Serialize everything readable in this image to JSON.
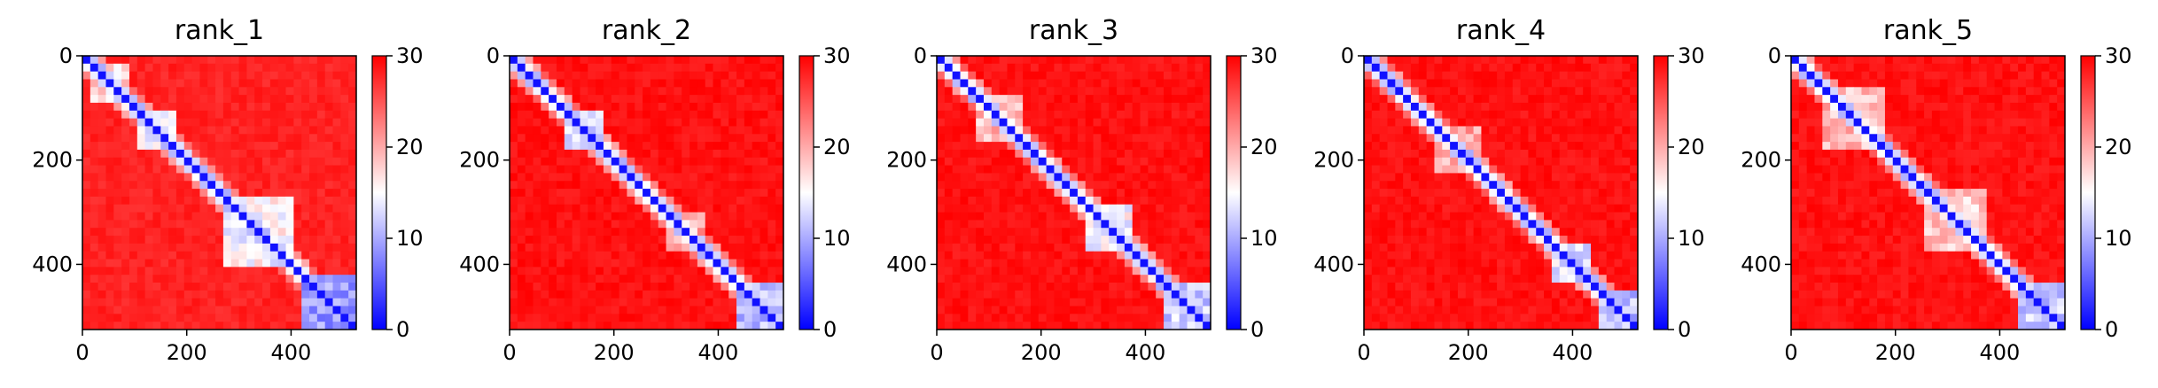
{
  "figure": {
    "background": "#ffffff"
  },
  "colormap": {
    "name": "bwr",
    "stops": [
      "#0000ff",
      "#ffffff",
      "#ff0000"
    ],
    "note_min_label": "0",
    "vmin": 0,
    "vmax": 30,
    "ticks": [
      "0",
      "10",
      "20",
      "30"
    ]
  },
  "chart_data": [
    {
      "type": "heatmap",
      "title": "rank_1",
      "xlim": [
        0,
        525
      ],
      "ylim": [
        525,
        0
      ],
      "xticks": [
        "0",
        "200",
        "400"
      ],
      "yticks": [
        "0",
        "200",
        "400"
      ],
      "colorbar": {
        "min": 0,
        "max": 30,
        "ticks": [
          "0",
          "10",
          "20",
          "30"
        ]
      },
      "background_value": 29,
      "diagonal_value": 1,
      "domains": [
        {
          "start": 20,
          "end": 90,
          "value": 14
        },
        {
          "start": 100,
          "end": 180,
          "value": 11
        },
        {
          "start": 270,
          "end": 400,
          "value": 12
        },
        {
          "start": 420,
          "end": 525,
          "value": 6
        }
      ]
    },
    {
      "type": "heatmap",
      "title": "rank_2",
      "xlim": [
        0,
        525
      ],
      "ylim": [
        525,
        0
      ],
      "xticks": [
        "0",
        "200",
        "400"
      ],
      "yticks": [
        "0",
        "200",
        "400"
      ],
      "colorbar": {
        "min": 0,
        "max": 30,
        "ticks": [
          "0",
          "10",
          "20",
          "30"
        ]
      },
      "background_value": 30,
      "diagonal_value": 1,
      "domains": [
        {
          "start": 100,
          "end": 180,
          "value": 10
        },
        {
          "start": 300,
          "end": 380,
          "value": 17
        },
        {
          "start": 430,
          "end": 525,
          "value": 8
        }
      ]
    },
    {
      "type": "heatmap",
      "title": "rank_3",
      "xlim": [
        0,
        525
      ],
      "ylim": [
        525,
        0
      ],
      "xticks": [
        "0",
        "200",
        "400"
      ],
      "yticks": [
        "0",
        "200",
        "400"
      ],
      "colorbar": {
        "min": 0,
        "max": 30,
        "ticks": [
          "0",
          "10",
          "20",
          "30"
        ]
      },
      "background_value": 30,
      "diagonal_value": 1,
      "domains": [
        {
          "start": 80,
          "end": 160,
          "value": 16
        },
        {
          "start": 280,
          "end": 380,
          "value": 12
        },
        {
          "start": 430,
          "end": 525,
          "value": 9
        }
      ]
    },
    {
      "type": "heatmap",
      "title": "rank_4",
      "xlim": [
        0,
        525
      ],
      "ylim": [
        525,
        0
      ],
      "xticks": [
        "0",
        "200",
        "400"
      ],
      "yticks": [
        "0",
        "200",
        "400"
      ],
      "colorbar": {
        "min": 0,
        "max": 30,
        "ticks": [
          "0",
          "10",
          "20",
          "30"
        ]
      },
      "background_value": 30,
      "diagonal_value": 1,
      "domains": [
        {
          "start": 130,
          "end": 220,
          "value": 17
        },
        {
          "start": 360,
          "end": 440,
          "value": 10
        },
        {
          "start": 450,
          "end": 525,
          "value": 8
        }
      ]
    },
    {
      "type": "heatmap",
      "title": "rank_5",
      "xlim": [
        0,
        525
      ],
      "ylim": [
        525,
        0
      ],
      "xticks": [
        "0",
        "200",
        "400"
      ],
      "yticks": [
        "0",
        "200",
        "400"
      ],
      "colorbar": {
        "min": 0,
        "max": 30,
        "ticks": [
          "0",
          "10",
          "20",
          "30"
        ]
      },
      "background_value": 30,
      "diagonal_value": 1,
      "domains": [
        {
          "start": 60,
          "end": 180,
          "value": 16
        },
        {
          "start": 250,
          "end": 380,
          "value": 15
        },
        {
          "start": 430,
          "end": 525,
          "value": 9
        }
      ]
    }
  ]
}
